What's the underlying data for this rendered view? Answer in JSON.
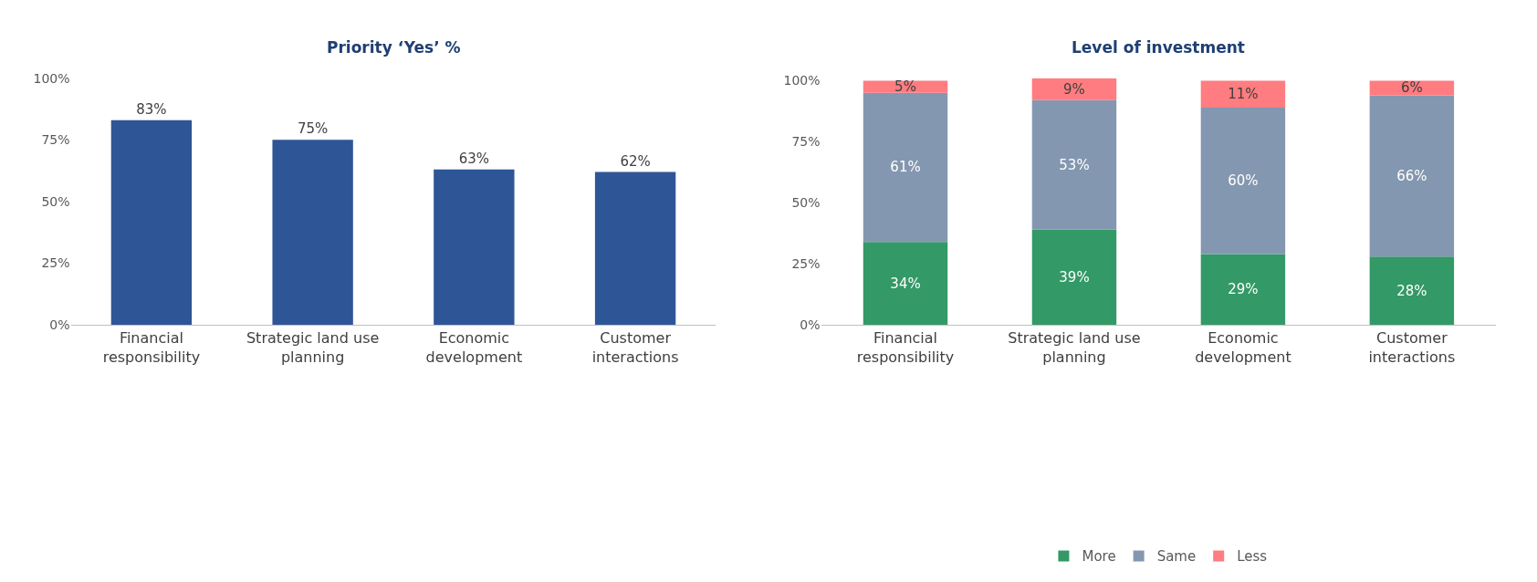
{
  "chart_data": [
    {
      "type": "bar",
      "title": "Priority ‘Yes’ %",
      "categories": [
        "Financial responsibility",
        "Strategic land use planning",
        "Economic development",
        "Customer interactions"
      ],
      "values": [
        83,
        75,
        63,
        62
      ],
      "value_labels": [
        "83%",
        "75%",
        "63%",
        "62%"
      ],
      "color": "#2e5596",
      "ylim": [
        0,
        100
      ],
      "yticks": [
        {
          "value": 0,
          "label": "0%"
        },
        {
          "value": 25,
          "label": "25%"
        },
        {
          "value": 50,
          "label": "50%"
        },
        {
          "value": 75,
          "label": "75%"
        },
        {
          "value": 100,
          "label": "100%"
        }
      ],
      "legend": false
    },
    {
      "type": "bar",
      "title": "Level of investment",
      "stacked": true,
      "categories": [
        "Financial responsibility",
        "Strategic land use planning",
        "Economic development",
        "Customer interactions"
      ],
      "series": [
        {
          "name": "More",
          "color": "#339966",
          "values": [
            34,
            39,
            29,
            28
          ],
          "value_labels": [
            "34%",
            "39%",
            "29%",
            "28%"
          ]
        },
        {
          "name": "Same",
          "color": "#8497b0",
          "values": [
            61,
            53,
            60,
            66
          ],
          "value_labels": [
            "61%",
            "53%",
            "60%",
            "66%"
          ]
        },
        {
          "name": "Less",
          "color": "#ff7c80",
          "values": [
            5,
            9,
            11,
            6
          ],
          "value_labels": [
            "5%",
            "9%",
            "11%",
            "6%"
          ]
        }
      ],
      "ylim": [
        0,
        101
      ],
      "yticks": [
        {
          "value": 0,
          "label": "0%"
        },
        {
          "value": 25,
          "label": "25%"
        },
        {
          "value": 50,
          "label": "50%"
        },
        {
          "value": 75,
          "label": "75%"
        },
        {
          "value": 100,
          "label": "100%"
        }
      ],
      "legend": "bottom"
    }
  ]
}
